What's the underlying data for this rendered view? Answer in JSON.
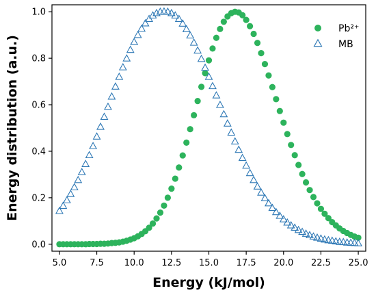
{
  "chart_data": {
    "type": "scatter",
    "title": "",
    "xlabel": "Energy (kJ/mol)",
    "ylabel": "Energy distribution (a.u.)",
    "xlim": [
      4.5,
      25.5
    ],
    "ylim": [
      -0.03,
      1.03
    ],
    "xticks": [
      5.0,
      7.5,
      10.0,
      12.5,
      15.0,
      17.5,
      20.0,
      22.5,
      25.0
    ],
    "xtick_labels": [
      "5.0",
      "7.5",
      "10.0",
      "12.5",
      "15.0",
      "17.5",
      "20.0",
      "22.5",
      "25.0"
    ],
    "yticks": [
      0.0,
      0.2,
      0.4,
      0.6,
      0.8,
      1.0
    ],
    "ytick_labels": [
      "0.0",
      "0.2",
      "0.4",
      "0.6",
      "0.8",
      "1.0"
    ],
    "grid": false,
    "legend_position": "top-right",
    "series": [
      {
        "name": "Pb²⁺",
        "marker": "filled-circle",
        "color": "#2db35c",
        "x": [
          5.0,
          5.25,
          5.5,
          5.75,
          6.0,
          6.25,
          6.5,
          6.75,
          7.0,
          7.25,
          7.5,
          7.75,
          8.0,
          8.25,
          8.5,
          8.75,
          9.0,
          9.25,
          9.5,
          9.75,
          10.0,
          10.25,
          10.5,
          10.75,
          11.0,
          11.25,
          11.5,
          11.75,
          12.0,
          12.25,
          12.5,
          12.75,
          13.0,
          13.25,
          13.5,
          13.75,
          14.0,
          14.25,
          14.5,
          14.75,
          15.0,
          15.25,
          15.5,
          15.75,
          16.0,
          16.25,
          16.5,
          16.75,
          17.0,
          17.25,
          17.5,
          17.75,
          18.0,
          18.25,
          18.5,
          18.75,
          19.0,
          19.25,
          19.5,
          19.75,
          20.0,
          20.25,
          20.5,
          20.75,
          21.0,
          21.25,
          21.5,
          21.75,
          22.0,
          22.25,
          22.5,
          22.75,
          23.0,
          23.25,
          23.5,
          23.75,
          24.0,
          24.25,
          24.5,
          24.75,
          25.0
        ],
        "y": [
          0.0,
          0.0,
          0.0,
          0.0,
          0.0,
          0.0,
          0.0,
          0.0,
          0.001,
          0.001,
          0.001,
          0.002,
          0.002,
          0.003,
          0.005,
          0.006,
          0.008,
          0.011,
          0.015,
          0.02,
          0.026,
          0.034,
          0.044,
          0.056,
          0.071,
          0.089,
          0.111,
          0.136,
          0.166,
          0.2,
          0.239,
          0.282,
          0.33,
          0.382,
          0.437,
          0.495,
          0.555,
          0.616,
          0.677,
          0.736,
          0.791,
          0.842,
          0.888,
          0.926,
          0.957,
          0.98,
          0.994,
          1.0,
          0.997,
          0.985,
          0.965,
          0.938,
          0.905,
          0.866,
          0.822,
          0.775,
          0.726,
          0.676,
          0.624,
          0.573,
          0.523,
          0.474,
          0.427,
          0.383,
          0.341,
          0.302,
          0.266,
          0.233,
          0.203,
          0.176,
          0.152,
          0.131,
          0.112,
          0.095,
          0.081,
          0.068,
          0.057,
          0.048,
          0.04,
          0.033,
          0.028
        ]
      },
      {
        "name": "MB",
        "marker": "open-triangle",
        "color": "#2e78b5",
        "x": [
          5.0,
          5.25,
          5.5,
          5.75,
          6.0,
          6.25,
          6.5,
          6.75,
          7.0,
          7.25,
          7.5,
          7.75,
          8.0,
          8.25,
          8.5,
          8.75,
          9.0,
          9.25,
          9.5,
          9.75,
          10.0,
          10.25,
          10.5,
          10.75,
          11.0,
          11.25,
          11.5,
          11.75,
          12.0,
          12.25,
          12.5,
          12.75,
          13.0,
          13.25,
          13.5,
          13.75,
          14.0,
          14.25,
          14.5,
          14.75,
          15.0,
          15.25,
          15.5,
          15.75,
          16.0,
          16.25,
          16.5,
          16.75,
          17.0,
          17.25,
          17.5,
          17.75,
          18.0,
          18.25,
          18.5,
          18.75,
          19.0,
          19.25,
          19.5,
          19.75,
          20.0,
          20.25,
          20.5,
          20.75,
          21.0,
          21.25,
          21.5,
          21.75,
          22.0,
          22.25,
          22.5,
          22.75,
          23.0,
          23.25,
          23.5,
          23.75,
          24.0,
          24.25,
          24.5,
          24.75,
          25.0
        ],
        "y": [
          0.142,
          0.164,
          0.188,
          0.215,
          0.244,
          0.275,
          0.309,
          0.344,
          0.382,
          0.421,
          0.462,
          0.504,
          0.547,
          0.59,
          0.634,
          0.677,
          0.719,
          0.76,
          0.798,
          0.835,
          0.869,
          0.899,
          0.926,
          0.949,
          0.968,
          0.983,
          0.993,
          0.999,
          1.0,
          0.999,
          0.993,
          0.983,
          0.968,
          0.948,
          0.924,
          0.897,
          0.866,
          0.832,
          0.796,
          0.758,
          0.719,
          0.679,
          0.639,
          0.598,
          0.558,
          0.518,
          0.479,
          0.441,
          0.405,
          0.37,
          0.337,
          0.305,
          0.275,
          0.247,
          0.221,
          0.197,
          0.175,
          0.155,
          0.137,
          0.121,
          0.106,
          0.092,
          0.08,
          0.07,
          0.06,
          0.052,
          0.044,
          0.038,
          0.032,
          0.027,
          0.023,
          0.019,
          0.016,
          0.014,
          0.011,
          0.009,
          0.008,
          0.006,
          0.005,
          0.004,
          0.003
        ]
      }
    ]
  }
}
